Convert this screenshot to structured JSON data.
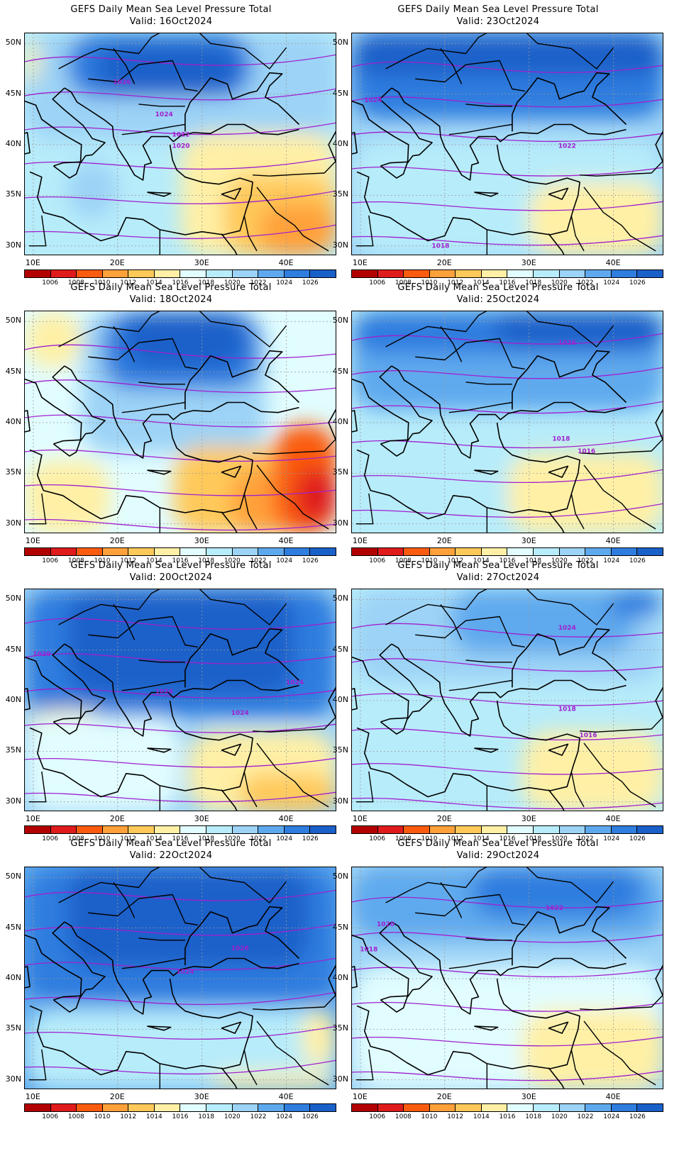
{
  "panel_title": "GEFS Daily Mean Sea Level Pressure Total",
  "map_extent": {
    "lon": [
      9,
      46
    ],
    "lat": [
      29,
      51
    ]
  },
  "lat_labels": [
    "50N",
    "45N",
    "40N",
    "35N",
    "30N"
  ],
  "lon_labels": [
    "10E",
    "20E",
    "30E",
    "40E"
  ],
  "colorbar": {
    "labels": [
      "1006",
      "1008",
      "1010",
      "1012",
      "1014",
      "1016",
      "1018",
      "1020",
      "1022",
      "1024",
      "1026"
    ],
    "colors": [
      "#b30000",
      "#e01b1b",
      "#fb5b0f",
      "#ffa13a",
      "#ffc95a",
      "#fff0a6",
      "#e1fdff",
      "#b7ecfa",
      "#9cd3f6",
      "#5ea9ee",
      "#2e7ddf",
      "#1a60c9"
    ]
  },
  "panels": [
    {
      "valid": "Valid: 16Oct2024",
      "contour_labels": [
        {
          "text": "1026",
          "lon": 20.5,
          "lat": 46.0
        },
        {
          "text": "1024",
          "lon": 25.5,
          "lat": 42.8
        },
        {
          "text": "1022",
          "lon": 27.5,
          "lat": 40.8
        },
        {
          "text": "1020",
          "lon": 27.5,
          "lat": 39.7
        }
      ]
    },
    {
      "valid": "Valid: 23Oct2024",
      "contour_labels": [
        {
          "text": "1024",
          "lon": 11.5,
          "lat": 44.2
        },
        {
          "text": "1022",
          "lon": 34.5,
          "lat": 39.7
        },
        {
          "text": "1018",
          "lon": 19.5,
          "lat": 29.8
        }
      ]
    },
    {
      "valid": "Valid: 18Oct2024",
      "contour_labels": []
    },
    {
      "valid": "Valid: 25Oct2024",
      "contour_labels": [
        {
          "text": "1026",
          "lon": 34.5,
          "lat": 47.7
        },
        {
          "text": "1018",
          "lon": 33.8,
          "lat": 38.2
        },
        {
          "text": "1016",
          "lon": 36.8,
          "lat": 37.0
        }
      ]
    },
    {
      "valid": "Valid: 20Oct2024",
      "contour_labels": [
        {
          "text": "1020",
          "lon": 11.0,
          "lat": 44.4
        },
        {
          "text": "1024",
          "lon": 41.0,
          "lat": 41.6
        },
        {
          "text": "1024",
          "lon": 25.5,
          "lat": 40.7
        },
        {
          "text": "1024",
          "lon": 34.5,
          "lat": 38.6
        }
      ]
    },
    {
      "valid": "Valid: 27Oct2024",
      "contour_labels": [
        {
          "text": "1024",
          "lon": 34.5,
          "lat": 47.0
        },
        {
          "text": "1018",
          "lon": 34.5,
          "lat": 39.0
        },
        {
          "text": "1016",
          "lon": 37.0,
          "lat": 36.4
        }
      ]
    },
    {
      "valid": "Valid: 22Oct2024",
      "contour_labels": [
        {
          "text": "1026",
          "lon": 34.5,
          "lat": 42.8
        },
        {
          "text": "1024",
          "lon": 28.0,
          "lat": 40.5
        }
      ]
    },
    {
      "valid": "Valid: 29Oct2024",
      "contour_labels": [
        {
          "text": "1022",
          "lon": 33.0,
          "lat": 46.8
        },
        {
          "text": "1020",
          "lon": 13.0,
          "lat": 45.2
        },
        {
          "text": "1018",
          "lon": 11.0,
          "lat": 42.7
        }
      ]
    }
  ]
}
